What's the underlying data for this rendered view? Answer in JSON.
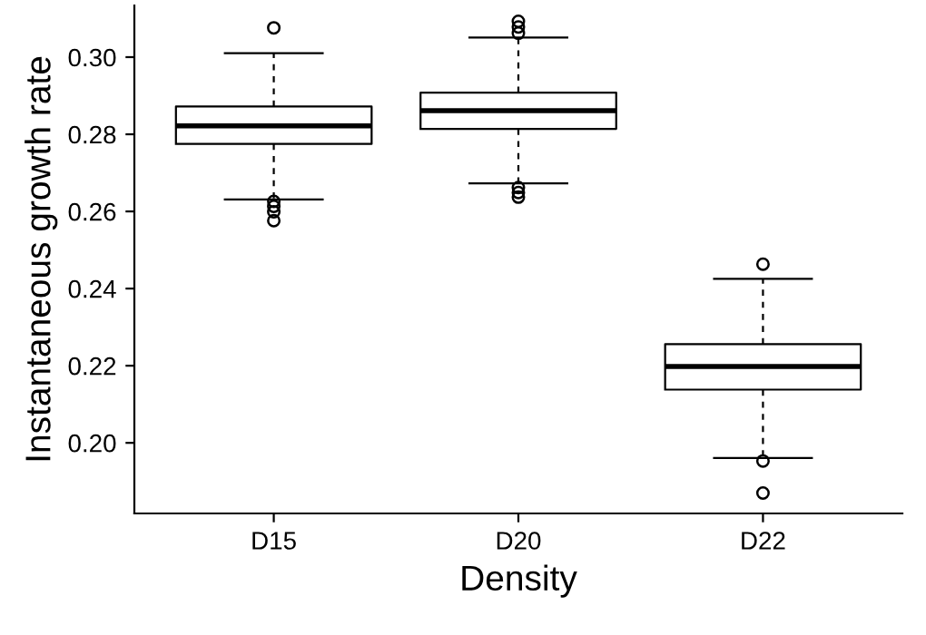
{
  "chart_data": {
    "type": "box",
    "xlabel": "Density",
    "ylabel": "Instantaneous growth rate",
    "categories": [
      "D15",
      "D20",
      "D22"
    ],
    "boxes": [
      {
        "low": 0.2631,
        "q1": 0.2775,
        "median": 0.2822,
        "q3": 0.2872,
        "high": 0.301,
        "outliers": [
          0.3076,
          0.2626,
          0.2613,
          0.2599,
          0.2576
        ]
      },
      {
        "low": 0.2673,
        "q1": 0.2814,
        "median": 0.2861,
        "q3": 0.2908,
        "high": 0.3051,
        "outliers": [
          0.3093,
          0.3078,
          0.3062,
          0.2662,
          0.2649,
          0.2637
        ]
      },
      {
        "low": 0.1961,
        "q1": 0.2138,
        "median": 0.2198,
        "q3": 0.2256,
        "high": 0.2425,
        "outliers": [
          0.2463,
          0.1953,
          0.187
        ]
      }
    ],
    "color": "#000000",
    "ylim": [
      0.1817,
      0.3134
    ],
    "yticks": [
      {
        "value": 0.2,
        "label": "0.20"
      },
      {
        "value": 0.22,
        "label": "0.22"
      },
      {
        "value": 0.24,
        "label": "0.24"
      },
      {
        "value": 0.26,
        "label": "0.26"
      },
      {
        "value": 0.28,
        "label": "0.28"
      },
      {
        "value": 0.3,
        "label": "0.30"
      }
    ],
    "grid": false
  }
}
